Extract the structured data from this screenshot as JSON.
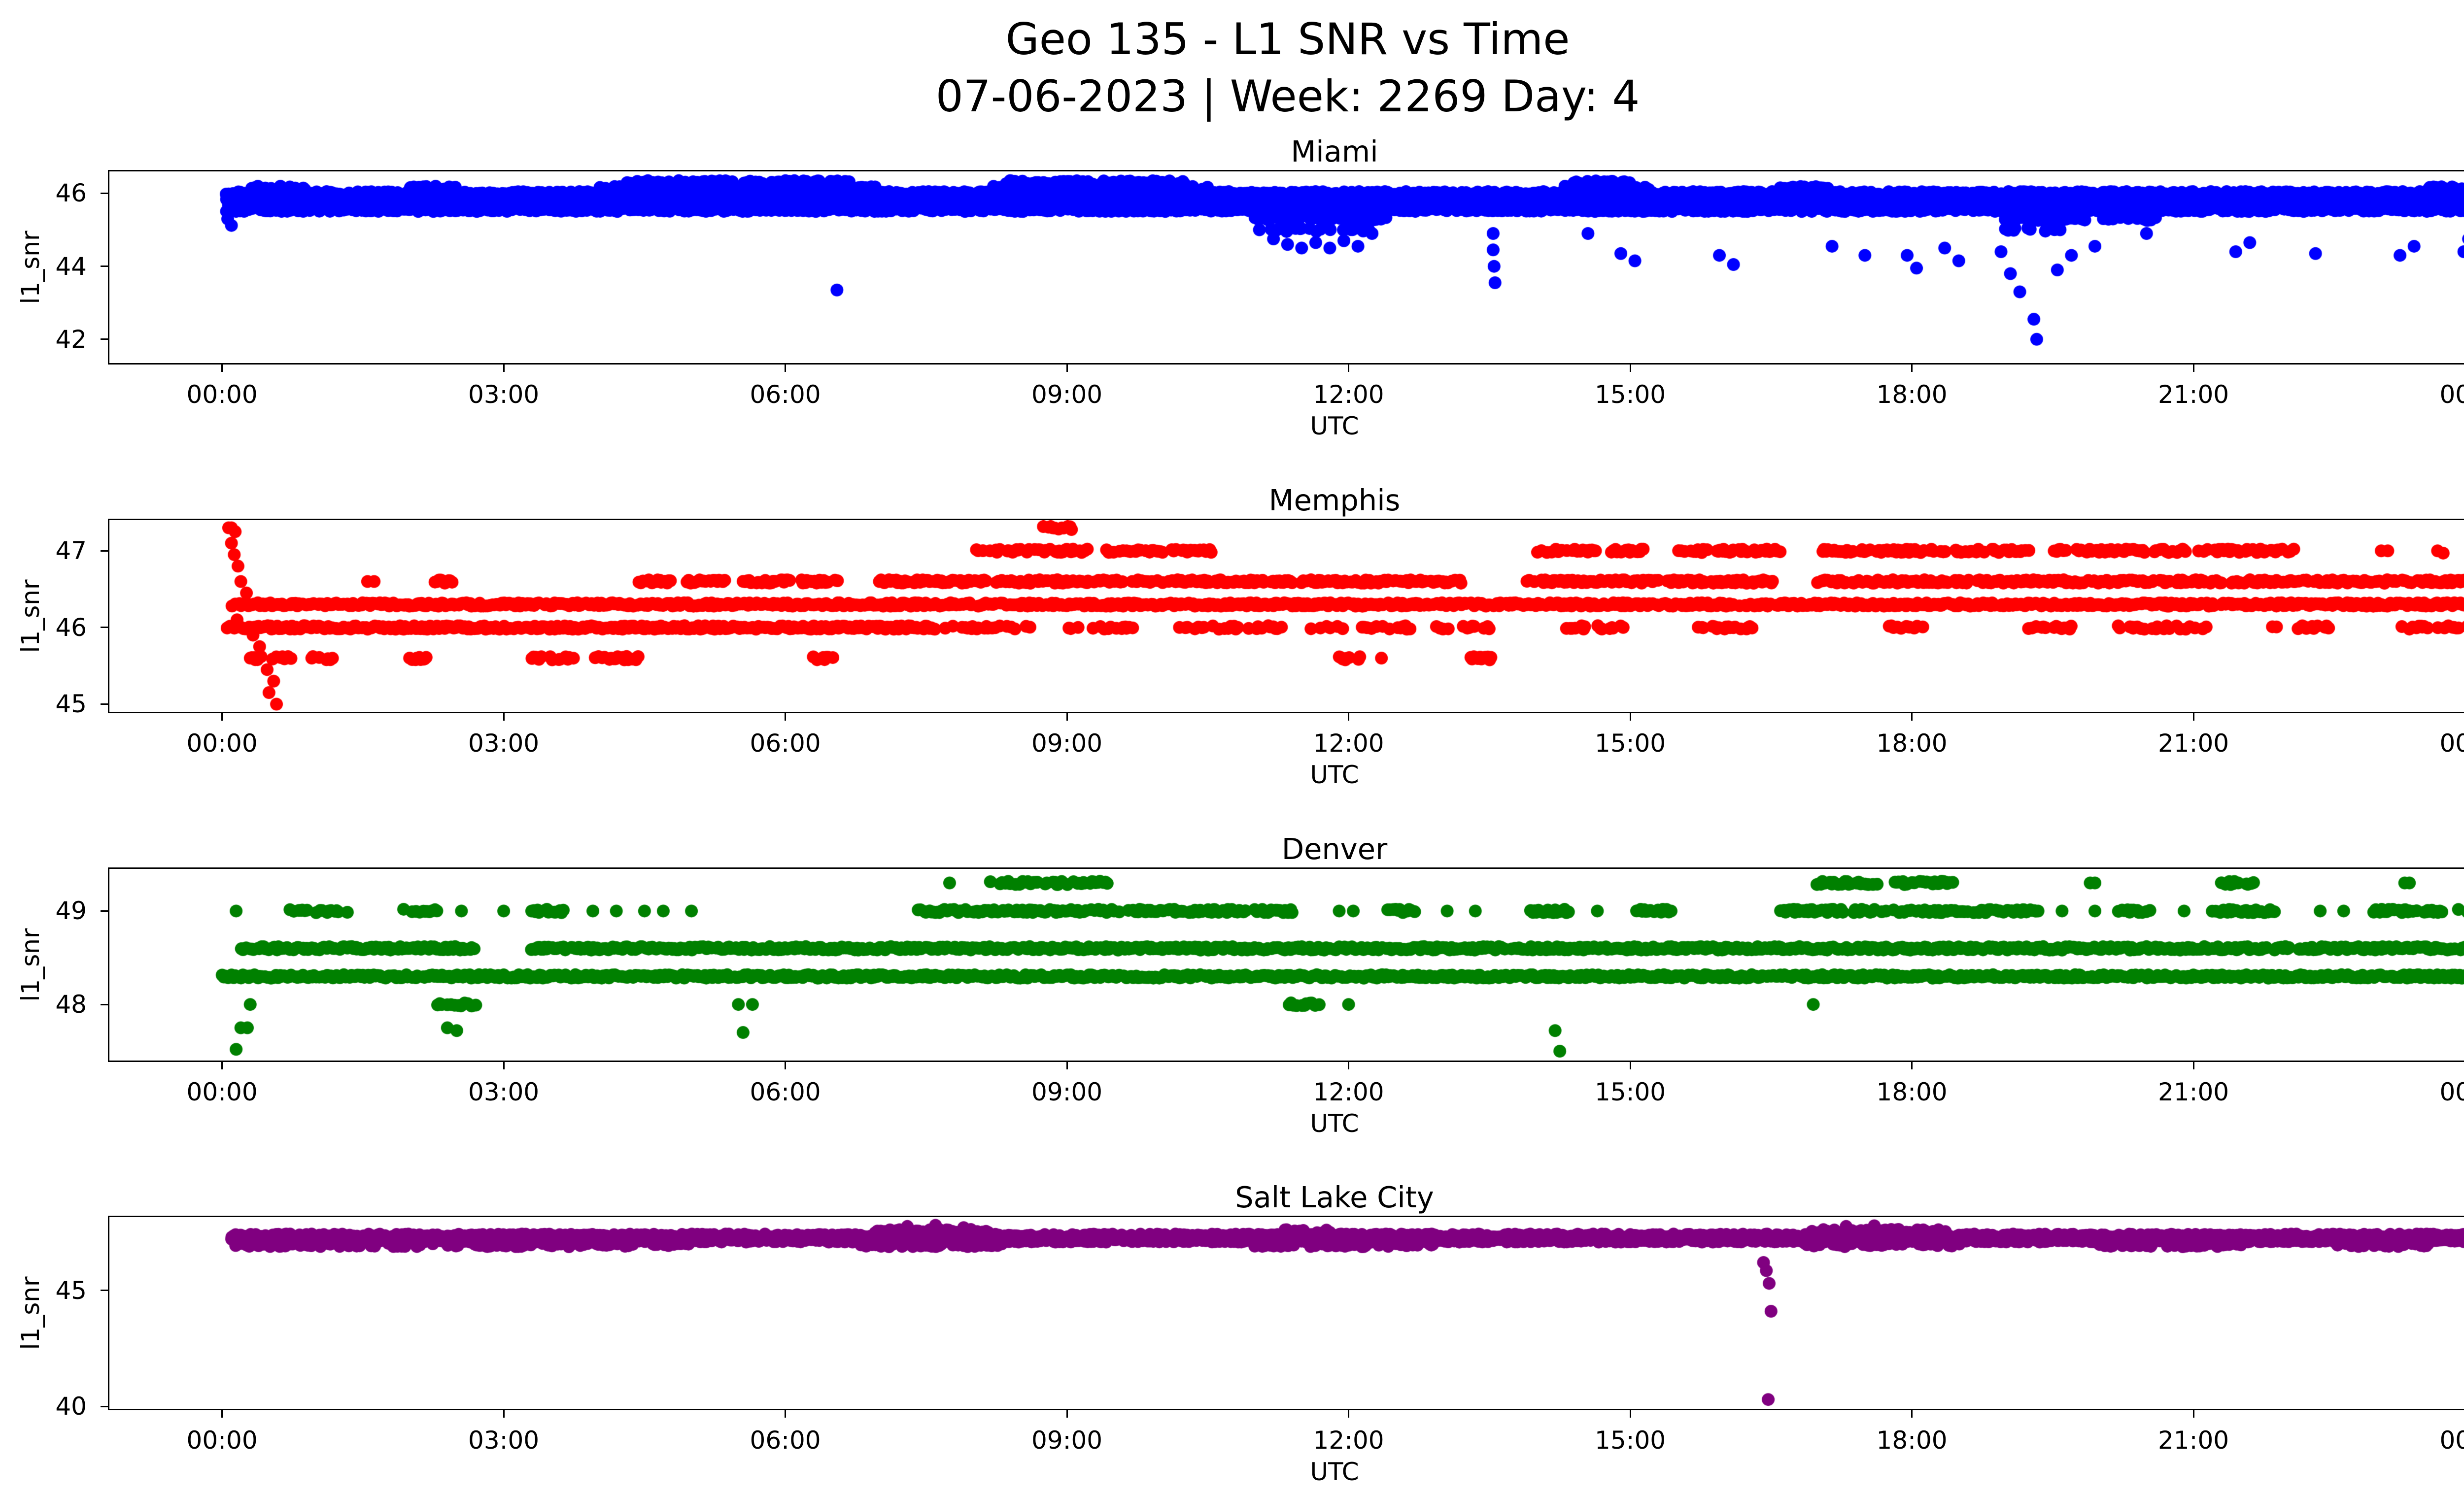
{
  "chart_data": {
    "type": "scatter",
    "title": "Geo 135 - L1 SNR vs Time",
    "subtitle": "07-06-2023 | Week: 2269 Day: 4",
    "xlabel": "UTC",
    "x_unit": "hours UTC",
    "xlim": [
      -1.2,
      24.9
    ],
    "grid": false,
    "legend": false,
    "marker": "o",
    "xticks": {
      "hours": [
        0,
        3,
        6,
        9,
        12,
        15,
        18,
        21,
        24
      ],
      "labels": [
        "00:00",
        "03:00",
        "06:00",
        "09:00",
        "12:00",
        "15:00",
        "18:00",
        "21:00",
        "00:00"
      ]
    },
    "subplots": [
      {
        "title": "Miami",
        "color": "#0000ff",
        "ylabel": "l1_snr",
        "xlabel": "UTC",
        "yticks": [
          42,
          44,
          46
        ],
        "ylim": [
          41.35,
          46.6
        ],
        "bands": [
          {
            "snr": 46.3,
            "density": 0.65,
            "segments": [
              [
                4.3,
                6.7
              ],
              [
                8.35,
                10.3
              ],
              [
                14.4,
                15.05
              ]
            ]
          },
          {
            "snr": 46.15,
            "density": 0.55,
            "segments": [
              [
                0.3,
                0.9
              ],
              [
                2.0,
                2.5
              ],
              [
                4.0,
                7.0
              ],
              [
                8.2,
                10.5
              ],
              [
                14.3,
                15.2
              ],
              [
                16.6,
                17.1
              ],
              [
                23.5,
                24.0
              ]
            ]
          },
          {
            "snr": 46.0,
            "density": 0.85,
            "segments": [
              [
                0.05,
                24.0
              ]
            ]
          },
          {
            "snr": 45.85,
            "density": 0.95,
            "segments": [
              [
                0.05,
                24.0
              ]
            ]
          },
          {
            "snr": 45.7,
            "density": 0.95,
            "segments": [
              [
                0.05,
                24.0
              ]
            ]
          },
          {
            "snr": 45.55,
            "density": 0.85,
            "segments": [
              [
                0.05,
                24.0
              ]
            ]
          },
          {
            "snr": 45.3,
            "density": 0.45,
            "segments": [
              [
                11.0,
                12.4
              ],
              [
                18.9,
                20.6
              ]
            ]
          },
          {
            "snr": 45.0,
            "density": 0.3,
            "segments": [
              [
                11.1,
                12.3
              ],
              [
                19.0,
                19.7
              ]
            ]
          }
        ],
        "points": [
          [
            0.06,
            45.3
          ],
          [
            0.1,
            45.12
          ],
          [
            6.55,
            43.35
          ],
          [
            11.05,
            45.0
          ],
          [
            11.2,
            44.75
          ],
          [
            11.35,
            44.6
          ],
          [
            11.5,
            44.5
          ],
          [
            11.65,
            44.65
          ],
          [
            11.8,
            44.5
          ],
          [
            11.95,
            44.7
          ],
          [
            12.1,
            44.55
          ],
          [
            12.25,
            44.9
          ],
          [
            13.54,
            44.9
          ],
          [
            13.54,
            44.45
          ],
          [
            13.55,
            44.0
          ],
          [
            13.56,
            43.55
          ],
          [
            14.55,
            44.9
          ],
          [
            14.9,
            44.35
          ],
          [
            15.05,
            44.15
          ],
          [
            15.95,
            44.3
          ],
          [
            16.1,
            44.05
          ],
          [
            17.15,
            44.55
          ],
          [
            17.5,
            44.3
          ],
          [
            17.95,
            44.3
          ],
          [
            18.05,
            43.95
          ],
          [
            18.35,
            44.5
          ],
          [
            18.5,
            44.15
          ],
          [
            18.95,
            44.4
          ],
          [
            19.05,
            43.8
          ],
          [
            19.15,
            43.3
          ],
          [
            19.3,
            42.55
          ],
          [
            19.33,
            42.0
          ],
          [
            19.55,
            43.9
          ],
          [
            19.7,
            44.3
          ],
          [
            19.95,
            44.55
          ],
          [
            20.5,
            44.9
          ],
          [
            21.45,
            44.4
          ],
          [
            21.6,
            44.65
          ],
          [
            22.3,
            44.35
          ],
          [
            23.2,
            44.3
          ],
          [
            23.35,
            44.55
          ],
          [
            23.88,
            44.4
          ],
          [
            23.93,
            44.75
          ],
          [
            23.96,
            45.05
          ],
          [
            23.98,
            45.45
          ]
        ]
      },
      {
        "title": "Memphis",
        "color": "#ff0000",
        "ylabel": "l1_snr",
        "xlabel": "UTC",
        "yticks": [
          45,
          46,
          47
        ],
        "ylim": [
          44.9,
          47.4
        ],
        "bands": [
          {
            "snr": 47.3,
            "density": 0.55,
            "segments": [
              [
                8.75,
                9.05
              ]
            ]
          },
          {
            "snr": 47.0,
            "density": 0.7,
            "segments": [
              [
                8.0,
                9.25
              ],
              [
                9.4,
                10.55
              ],
              [
                13.95,
                14.65
              ],
              [
                14.8,
                15.15
              ],
              [
                15.5,
                16.6
              ],
              [
                17.05,
                18.35
              ],
              [
                18.45,
                19.25
              ],
              [
                19.5,
                20.95
              ],
              [
                21.05,
                22.1
              ]
            ]
          },
          {
            "snr": 46.6,
            "density": 0.8,
            "segments": [
              [
                2.25,
                2.45
              ],
              [
                4.4,
                4.8
              ],
              [
                4.95,
                5.35
              ],
              [
                5.55,
                6.05
              ],
              [
                6.15,
                6.55
              ],
              [
                7.0,
                8.15
              ],
              [
                8.25,
                9.6
              ],
              [
                9.7,
                11.4
              ],
              [
                11.5,
                13.2
              ],
              [
                13.9,
                15.3
              ],
              [
                15.4,
                16.55
              ],
              [
                17.0,
                18.6
              ],
              [
                18.7,
                21.3
              ],
              [
                21.4,
                24.0
              ]
            ]
          },
          {
            "snr": 46.3,
            "density": 0.9,
            "segments": [
              [
                0.1,
                24.0
              ]
            ]
          },
          {
            "snr": 46.0,
            "density": 0.95,
            "segments": [
              [
                0.05,
                7.6
              ]
            ]
          },
          {
            "snr": 46.0,
            "density": 0.4,
            "segments": [
              [
                7.7,
                8.6
              ],
              [
                9.0,
                9.7
              ],
              [
                10.2,
                11.3
              ],
              [
                11.6,
                12.7
              ],
              [
                12.9,
                13.5
              ],
              [
                14.3,
                15.0
              ],
              [
                15.7,
                16.3
              ],
              [
                17.6,
                18.2
              ],
              [
                19.2,
                19.7
              ],
              [
                20.2,
                21.3
              ],
              [
                21.8,
                22.5
              ],
              [
                23.2,
                24.0
              ]
            ]
          },
          {
            "snr": 45.6,
            "density": 0.55,
            "segments": [
              [
                0.3,
                0.75
              ],
              [
                0.95,
                1.3
              ],
              [
                2.0,
                2.18
              ],
              [
                3.3,
                3.75
              ],
              [
                3.95,
                4.45
              ],
              [
                6.3,
                6.55
              ],
              [
                11.9,
                12.15
              ],
              [
                13.3,
                13.55
              ]
            ]
          }
        ],
        "points": [
          [
            0.07,
            47.3
          ],
          [
            0.1,
            47.3
          ],
          [
            0.14,
            47.25
          ],
          [
            0.1,
            47.1
          ],
          [
            0.13,
            46.95
          ],
          [
            0.17,
            46.8
          ],
          [
            0.2,
            46.6
          ],
          [
            0.26,
            46.45
          ],
          [
            0.16,
            46.1
          ],
          [
            0.33,
            45.9
          ],
          [
            0.4,
            45.75
          ],
          [
            0.37,
            45.6
          ],
          [
            0.48,
            45.45
          ],
          [
            0.55,
            45.3
          ],
          [
            0.5,
            45.15
          ],
          [
            0.58,
            45.0
          ],
          [
            1.55,
            46.6
          ],
          [
            1.62,
            46.6
          ],
          [
            12.35,
            45.6
          ],
          [
            23.0,
            47.0
          ],
          [
            23.07,
            47.0
          ],
          [
            23.6,
            47.0
          ],
          [
            23.66,
            46.97
          ]
        ]
      },
      {
        "title": "Denver",
        "color": "#008000",
        "ylabel": "l1_snr",
        "xlabel": "UTC",
        "yticks": [
          48,
          49
        ],
        "ylim": [
          47.4,
          49.45
        ],
        "bands": [
          {
            "snr": 49.3,
            "density": 0.6,
            "segments": [
              [
                8.15,
                9.45
              ],
              [
                16.95,
                17.65
              ],
              [
                17.8,
                18.45
              ],
              [
                21.3,
                21.65
              ]
            ]
          },
          {
            "snr": 49.0,
            "density": 0.7,
            "segments": [
              [
                0.7,
                1.35
              ],
              [
                1.85,
                2.3
              ],
              [
                3.3,
                3.65
              ],
              [
                7.4,
                11.4
              ],
              [
                12.4,
                12.7
              ],
              [
                13.9,
                14.35
              ],
              [
                15.05,
                15.45
              ],
              [
                16.6,
                19.35
              ],
              [
                20.2,
                20.55
              ],
              [
                21.2,
                21.95
              ],
              [
                22.9,
                23.65
              ],
              [
                23.8,
                24.0
              ]
            ]
          },
          {
            "snr": 48.6,
            "density": 0.9,
            "segments": [
              [
                0.2,
                2.7
              ],
              [
                3.3,
                24.0
              ]
            ]
          },
          {
            "snr": 48.3,
            "density": 0.95,
            "segments": [
              [
                0.0,
                24.0
              ]
            ]
          },
          {
            "snr": 48.0,
            "density": 0.6,
            "segments": [
              [
                2.3,
                2.7
              ],
              [
                11.35,
                11.7
              ]
            ]
          }
        ],
        "points": [
          [
            0.15,
            49.0
          ],
          [
            2.55,
            49.0
          ],
          [
            3.0,
            49.0
          ],
          [
            3.95,
            49.0
          ],
          [
            4.2,
            49.0
          ],
          [
            4.5,
            49.0
          ],
          [
            4.7,
            49.0
          ],
          [
            5.0,
            49.0
          ],
          [
            11.9,
            49.0
          ],
          [
            12.05,
            49.0
          ],
          [
            13.05,
            49.0
          ],
          [
            13.35,
            49.0
          ],
          [
            14.65,
            49.0
          ],
          [
            19.6,
            49.0
          ],
          [
            19.95,
            49.0
          ],
          [
            20.9,
            49.0
          ],
          [
            22.35,
            49.0
          ],
          [
            22.6,
            49.0
          ],
          [
            7.75,
            49.3
          ],
          [
            19.9,
            49.3
          ],
          [
            19.95,
            49.3
          ],
          [
            23.25,
            49.3
          ],
          [
            23.3,
            49.3
          ],
          [
            0.3,
            48.0
          ],
          [
            5.5,
            48.0
          ],
          [
            5.65,
            48.0
          ],
          [
            12.0,
            48.0
          ],
          [
            16.95,
            48.0
          ],
          [
            0.2,
            47.75
          ],
          [
            0.27,
            47.75
          ],
          [
            2.4,
            47.75
          ],
          [
            2.5,
            47.72
          ],
          [
            5.55,
            47.7
          ],
          [
            14.2,
            47.72
          ],
          [
            0.15,
            47.52
          ],
          [
            14.25,
            47.5
          ]
        ]
      },
      {
        "title": "Salt Lake City",
        "color": "#800080",
        "ylabel": "l1_snr",
        "xlabel": "UTC",
        "yticks": [
          40,
          45
        ],
        "ylim": [
          39.9,
          48.15
        ],
        "bands": [
          {
            "snr": 47.35,
            "density": 0.9,
            "segments": [
              [
                0.1,
                24.0
              ]
            ]
          },
          {
            "snr": 47.15,
            "density": 0.9,
            "segments": [
              [
                0.1,
                24.0
              ]
            ]
          },
          {
            "snr": 46.95,
            "density": 0.45,
            "segments": [
              [
                0.15,
                5.0
              ],
              [
                6.8,
                8.3
              ],
              [
                11.0,
                13.0
              ],
              [
                16.8,
                18.5
              ],
              [
                20.0,
                21.6
              ],
              [
                22.5,
                23.5
              ]
            ]
          },
          {
            "snr": 47.55,
            "density": 0.5,
            "segments": [
              [
                6.9,
                8.2
              ],
              [
                11.3,
                11.8
              ],
              [
                16.9,
                18.4
              ]
            ]
          }
        ],
        "points": [
          [
            7.3,
            47.75
          ],
          [
            7.6,
            47.8
          ],
          [
            7.9,
            47.7
          ],
          [
            17.3,
            47.75
          ],
          [
            17.6,
            47.78
          ],
          [
            16.42,
            46.2
          ],
          [
            16.45,
            45.85
          ],
          [
            16.48,
            45.3
          ],
          [
            16.5,
            44.1
          ],
          [
            16.47,
            40.3
          ]
        ]
      }
    ]
  }
}
